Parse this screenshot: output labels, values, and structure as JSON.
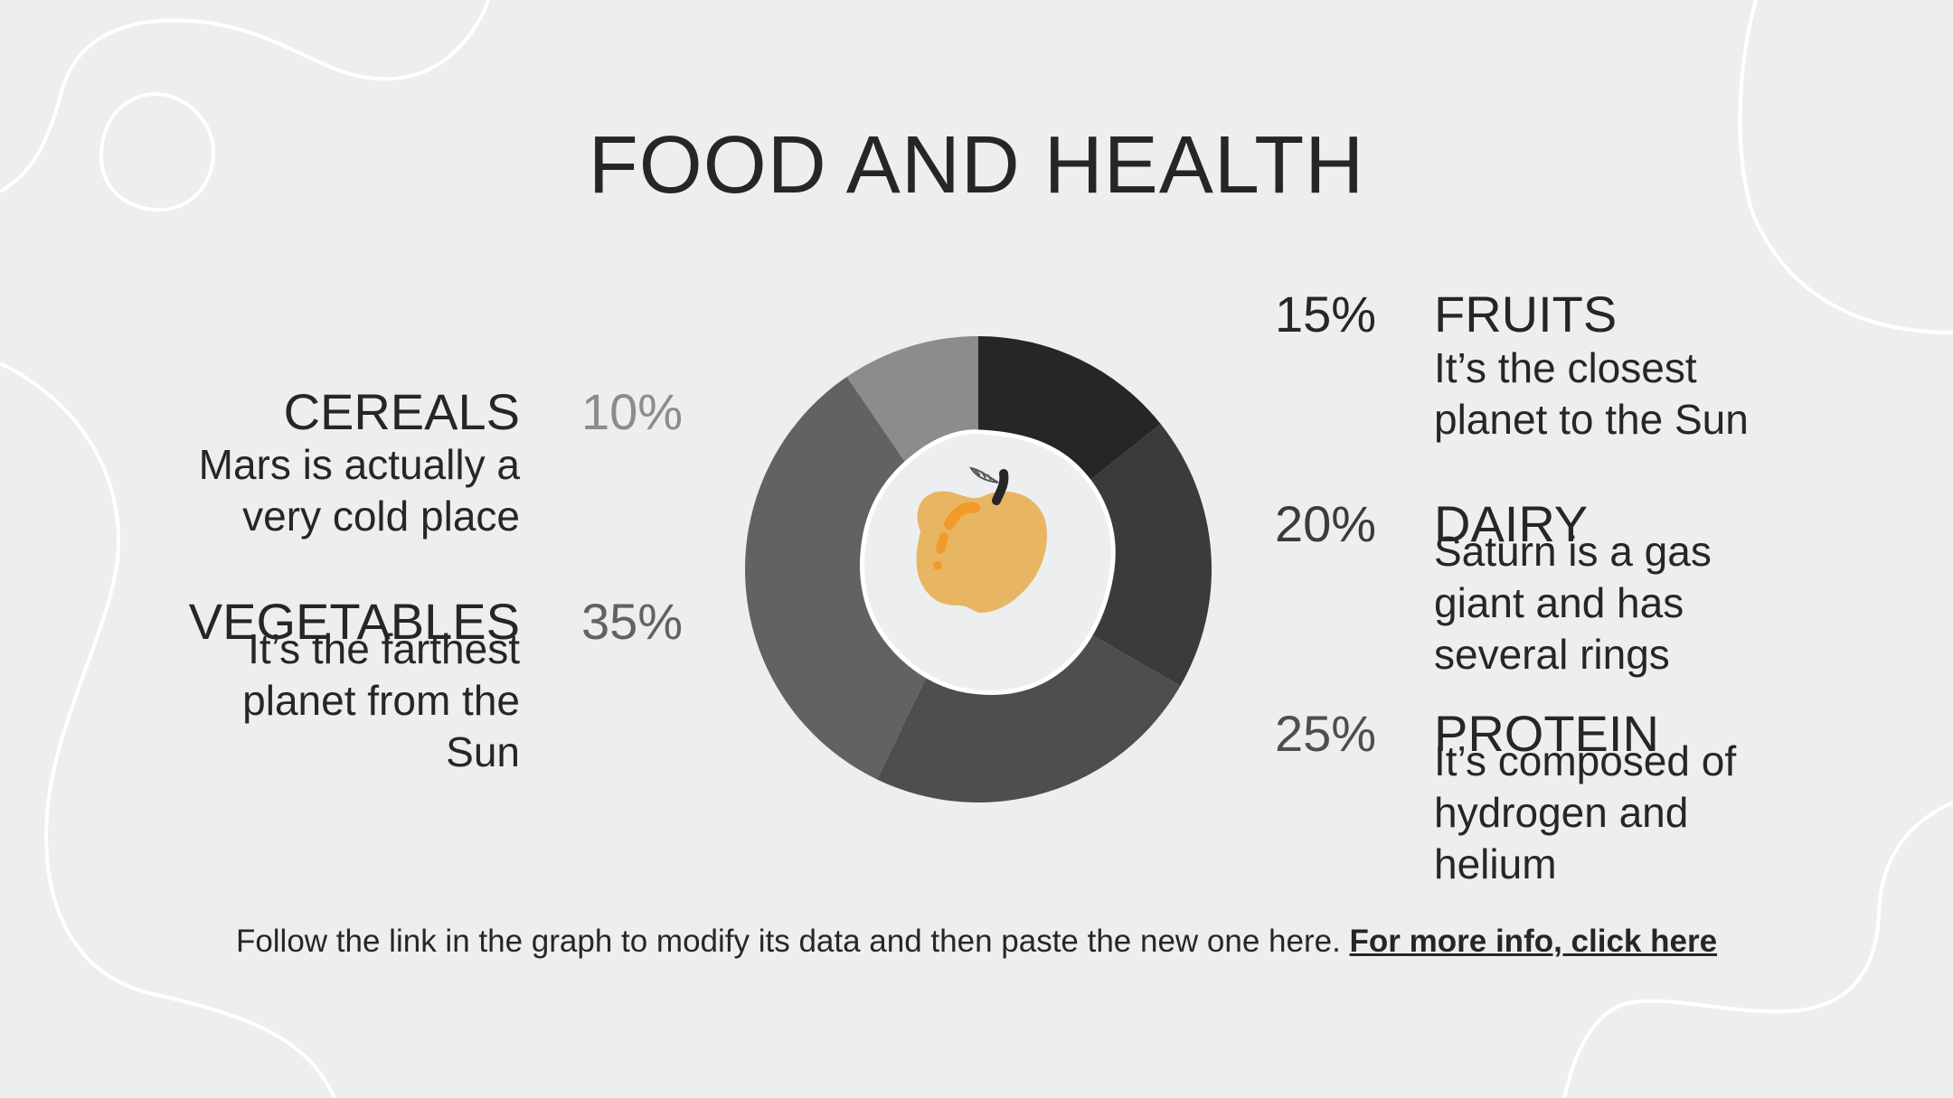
{
  "title": "FOOD AND HEALTH",
  "items": {
    "cereals": {
      "label": "CEREALS",
      "percent": "10%",
      "description": "Mars is actually a very cold place",
      "color": "#8c8c8c"
    },
    "vegetables": {
      "label": "VEGETABLES",
      "percent": "35%",
      "description": "It’s the farthest planet from the Sun",
      "color": "#636263"
    },
    "fruits": {
      "label": "FRUITS",
      "percent": "15%",
      "description": "It’s the closest planet to the Sun",
      "color": "#262626"
    },
    "dairy": {
      "label": "DAIRY",
      "percent": "20%",
      "description": "Saturn is a gas giant and has several rings",
      "color": "#3b3b3b"
    },
    "protein": {
      "label": "PROTEIN",
      "percent": "25%",
      "description": "It’s composed of hydrogen and helium",
      "color": "#4e4e4e"
    }
  },
  "footer": {
    "text": "Follow the link in the graph to modify its data and then paste the new one here. ",
    "link": "For more info, click here"
  },
  "chart_data": {
    "type": "pie",
    "title": "",
    "categories": [
      "Fruits",
      "Dairy",
      "Protein",
      "Vegetables",
      "Cereals"
    ],
    "values": [
      15,
      20,
      25,
      35,
      10
    ],
    "colors": [
      "#262626",
      "#3b3b3b",
      "#4e4e4e",
      "#636263",
      "#8c8c8c"
    ],
    "donut": true,
    "center_icon": "apple-icon"
  }
}
